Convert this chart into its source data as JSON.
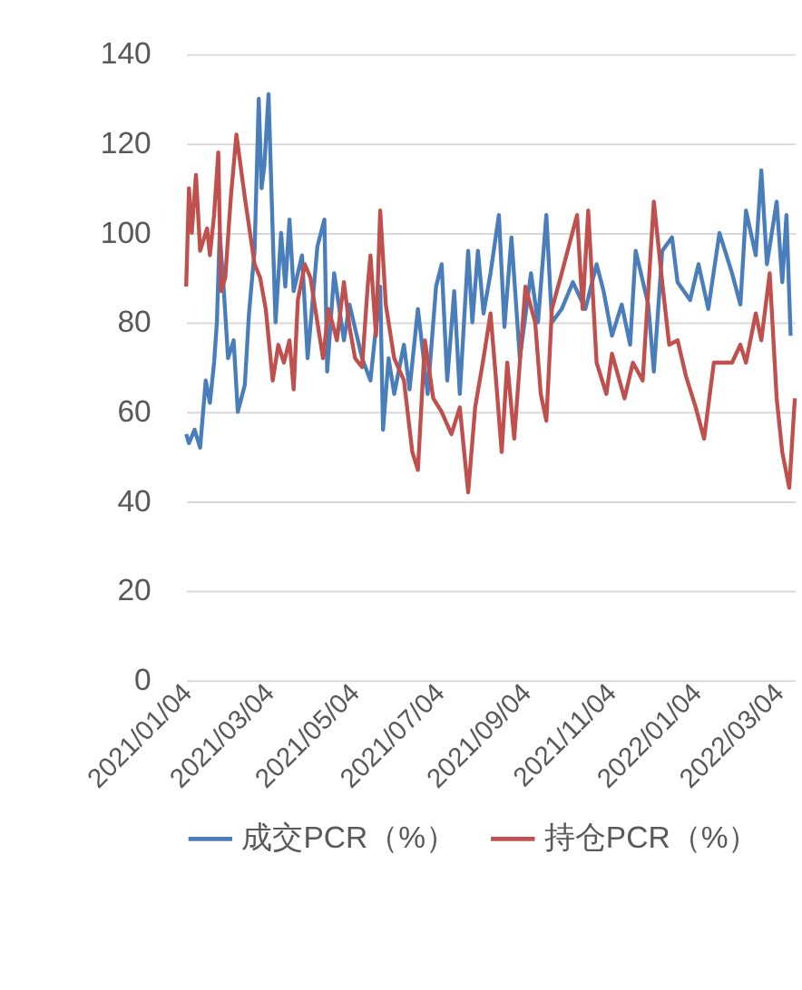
{
  "chart_data": {
    "type": "line",
    "xlim": [
      "2021-01-04",
      "2022-03-16"
    ],
    "xticks": [
      {
        "value": "2021-01-04",
        "label": "2021/01/04"
      },
      {
        "value": "2021-03-04",
        "label": "2021/03/04"
      },
      {
        "value": "2021-05-04",
        "label": "2021/05/04"
      },
      {
        "value": "2021-07-04",
        "label": "2021/07/04"
      },
      {
        "value": "2021-09-04",
        "label": "2021/09/04"
      },
      {
        "value": "2021-11-04",
        "label": "2021/11/04"
      },
      {
        "value": "2022-01-04",
        "label": "2022/01/04"
      },
      {
        "value": "2022-03-04",
        "label": "2022/03/04"
      }
    ],
    "ylim": [
      0,
      140
    ],
    "yticks": [
      0,
      20,
      40,
      60,
      80,
      100,
      120,
      140
    ],
    "grid": "y",
    "legend": "bottom",
    "marker": "none",
    "line_style": "solid",
    "series": [
      {
        "name": "成交PCR（%）",
        "color": "#4a7ebb",
        "x": [
          "2021-01-04",
          "2021-01-06",
          "2021-01-10",
          "2021-01-14",
          "2021-01-18",
          "2021-01-21",
          "2021-01-24",
          "2021-01-26",
          "2021-01-28",
          "2021-01-31",
          "2021-02-03",
          "2021-02-07",
          "2021-02-10",
          "2021-02-15",
          "2021-02-18",
          "2021-02-22",
          "2021-02-25",
          "2021-02-27",
          "2021-03-01",
          "2021-03-04",
          "2021-03-07",
          "2021-03-09",
          "2021-03-13",
          "2021-03-16",
          "2021-03-19",
          "2021-03-22",
          "2021-03-28",
          "2021-04-01",
          "2021-04-08",
          "2021-04-13",
          "2021-04-15",
          "2021-04-20",
          "2021-04-27",
          "2021-05-01",
          "2021-05-10",
          "2021-05-16",
          "2021-05-23",
          "2021-05-25",
          "2021-05-29",
          "2021-06-02",
          "2021-06-09",
          "2021-06-13",
          "2021-06-19",
          "2021-06-26",
          "2021-07-02",
          "2021-07-06",
          "2021-07-10",
          "2021-07-15",
          "2021-07-19",
          "2021-07-25",
          "2021-07-28",
          "2021-08-01",
          "2021-08-05",
          "2021-08-10",
          "2021-08-16",
          "2021-08-20",
          "2021-08-25",
          "2021-08-31",
          "2021-09-08",
          "2021-09-13",
          "2021-09-19",
          "2021-09-23",
          "2021-09-30",
          "2021-10-08",
          "2021-10-17",
          "2021-10-25",
          "2021-10-30",
          "2021-11-05",
          "2021-11-12",
          "2021-11-18",
          "2021-11-22",
          "2021-12-01",
          "2021-12-05",
          "2021-12-11",
          "2021-12-18",
          "2021-12-22",
          "2021-12-31",
          "2022-01-06",
          "2022-01-13",
          "2022-01-21",
          "2022-01-30",
          "2022-02-05",
          "2022-02-09",
          "2022-02-16",
          "2022-02-20",
          "2022-02-24",
          "2022-03-03",
          "2022-03-07",
          "2022-03-10",
          "2022-03-13"
        ],
        "values": [
          55,
          53,
          56,
          52,
          67,
          62,
          71,
          80,
          100,
          87,
          72,
          76,
          60,
          66,
          82,
          96,
          130,
          110,
          115,
          131,
          100,
          80,
          100,
          88,
          103,
          87,
          95,
          72,
          97,
          103,
          69,
          91,
          76,
          84,
          72,
          67,
          88,
          56,
          72,
          64,
          75,
          65,
          83,
          64,
          88,
          93,
          67,
          87,
          64,
          96,
          80,
          96,
          82,
          91,
          104,
          79,
          99,
          72,
          91,
          80,
          104,
          80,
          83,
          89,
          83,
          93,
          87,
          77,
          84,
          75,
          96,
          84,
          69,
          96,
          99,
          89,
          85,
          93,
          83,
          100,
          91,
          84,
          105,
          95,
          114,
          93,
          107,
          89,
          104,
          77
        ]
      },
      {
        "name": "持仓PCR（%）",
        "color": "#c0504d",
        "x": [
          "2021-01-04",
          "2021-01-06",
          "2021-01-08",
          "2021-01-11",
          "2021-01-14",
          "2021-01-19",
          "2021-01-21",
          "2021-01-24",
          "2021-01-27",
          "2021-01-29",
          "2021-02-01",
          "2021-02-05",
          "2021-02-09",
          "2021-02-15",
          "2021-02-22",
          "2021-02-26",
          "2021-03-02",
          "2021-03-07",
          "2021-03-11",
          "2021-03-15",
          "2021-03-19",
          "2021-03-22",
          "2021-03-25",
          "2021-03-30",
          "2021-04-03",
          "2021-04-08",
          "2021-04-12",
          "2021-04-16",
          "2021-04-22",
          "2021-04-27",
          "2021-05-01",
          "2021-05-05",
          "2021-05-10",
          "2021-05-14",
          "2021-05-16",
          "2021-05-20",
          "2021-05-23",
          "2021-05-27",
          "2021-06-02",
          "2021-06-09",
          "2021-06-15",
          "2021-06-19",
          "2021-06-24",
          "2021-06-30",
          "2021-07-06",
          "2021-07-13",
          "2021-07-19",
          "2021-07-25",
          "2021-07-30",
          "2021-08-05",
          "2021-08-10",
          "2021-08-14",
          "2021-08-18",
          "2021-08-22",
          "2021-08-27",
          "2021-09-04",
          "2021-09-11",
          "2021-09-15",
          "2021-09-19",
          "2021-09-23",
          "2021-09-30",
          "2021-10-11",
          "2021-10-15",
          "2021-10-19",
          "2021-10-25",
          "2021-11-01",
          "2021-11-05",
          "2021-11-14",
          "2021-11-20",
          "2021-11-27",
          "2021-12-05",
          "2021-12-11",
          "2021-12-16",
          "2021-12-22",
          "2021-12-28",
          "2022-01-04",
          "2022-01-10",
          "2022-01-17",
          "2022-01-30",
          "2022-02-05",
          "2022-02-09",
          "2022-02-16",
          "2022-02-20",
          "2022-02-26",
          "2022-03-03",
          "2022-03-07",
          "2022-03-12",
          "2022-03-16"
        ],
        "values": [
          88,
          110,
          100,
          113,
          96,
          101,
          95,
          104,
          118,
          87,
          90,
          108,
          122,
          108,
          93,
          90,
          83,
          67,
          75,
          71,
          76,
          65,
          85,
          93,
          90,
          80,
          72,
          83,
          76,
          89,
          79,
          72,
          70,
          88,
          95,
          77,
          105,
          84,
          72,
          67,
          51,
          47,
          76,
          63,
          60,
          55,
          61,
          42,
          61,
          72,
          82,
          67,
          51,
          71,
          54,
          88,
          80,
          64,
          58,
          83,
          91,
          104,
          83,
          105,
          71,
          64,
          73,
          63,
          71,
          67,
          107,
          89,
          75,
          76,
          68,
          61,
          54,
          71,
          71,
          75,
          71,
          82,
          76,
          91,
          63,
          51,
          43,
          63
        ]
      }
    ]
  }
}
